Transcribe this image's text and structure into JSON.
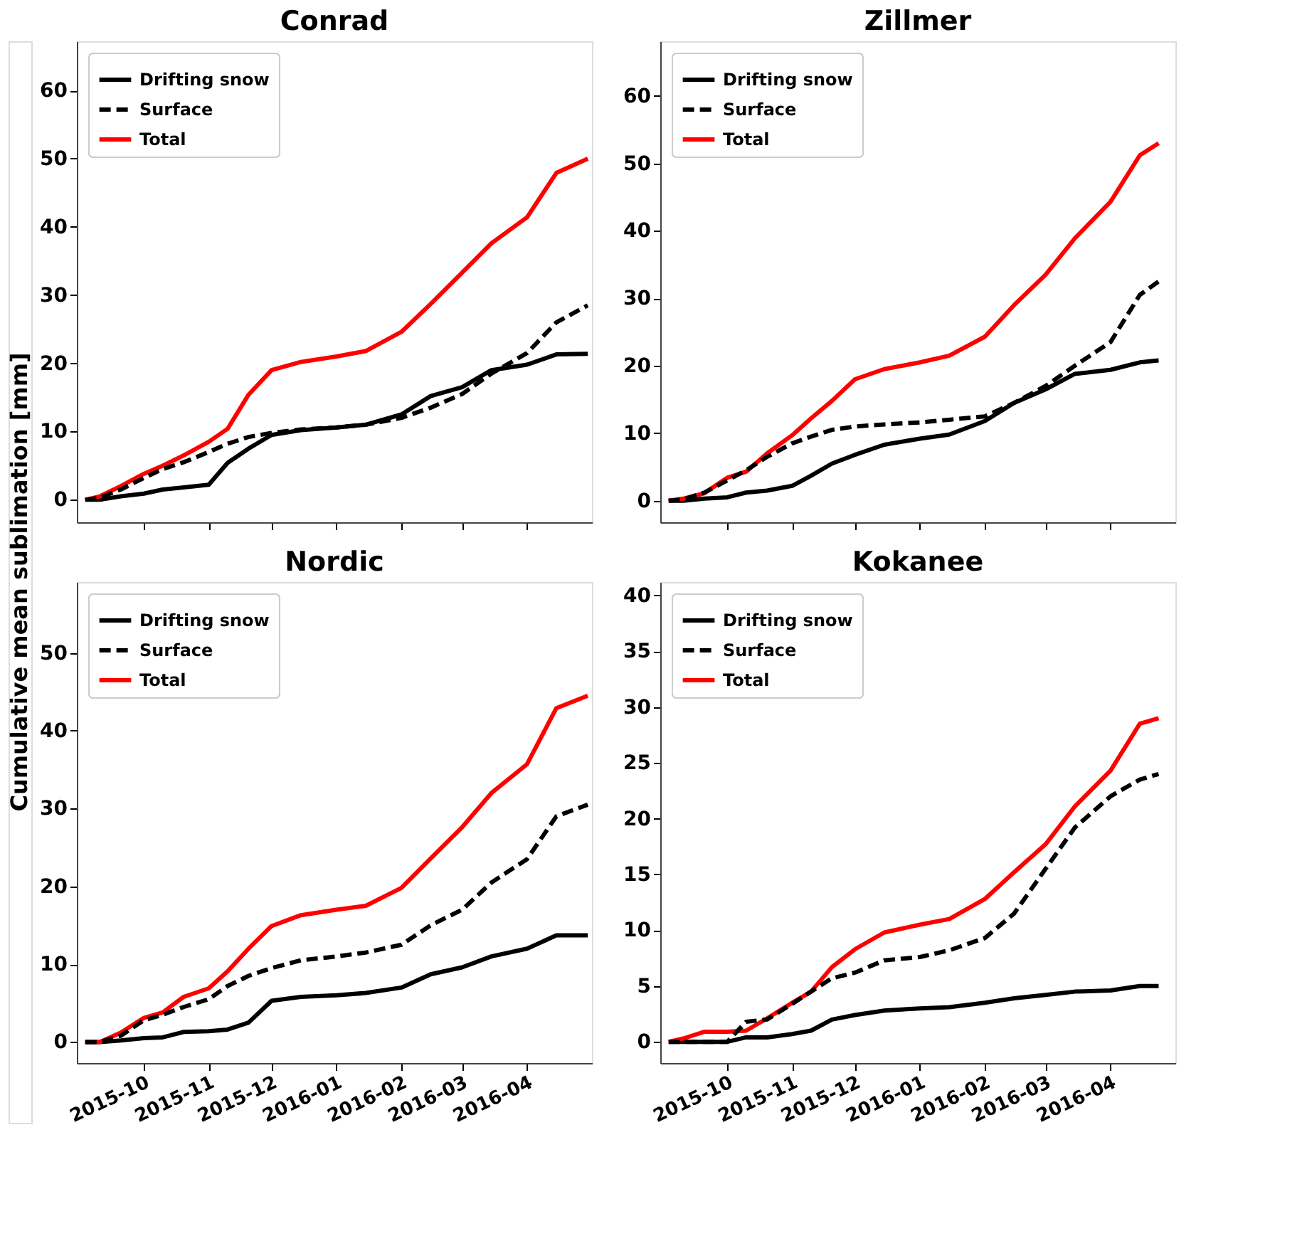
{
  "chart_data": [
    {
      "type": "line",
      "title": "Conrad",
      "xlim": [
        "2015-08-30",
        "2016-05-02"
      ],
      "ylim": [
        -3.3,
        67.2
      ],
      "yticks": [
        0,
        10,
        20,
        30,
        40,
        50,
        60
      ],
      "tick_labels": "y",
      "grid": false,
      "legend": "top left",
      "xticks": [
        {
          "value": "2015-10-01",
          "label": null
        },
        {
          "value": "2015-11-01",
          "label": null
        },
        {
          "value": "2015-12-01",
          "label": null
        },
        {
          "value": "2016-01-01",
          "label": null
        },
        {
          "value": "2016-02-01",
          "label": null
        },
        {
          "value": "2016-03-01",
          "label": null
        },
        {
          "value": "2016-04-01",
          "label": null
        }
      ],
      "x": [
        "2015-09-03",
        "2015-09-10",
        "2015-09-20",
        "2015-10-01",
        "2015-10-10",
        "2015-10-20",
        "2015-11-01",
        "2015-11-10",
        "2015-11-20",
        "2015-12-01",
        "2015-12-15",
        "2016-01-01",
        "2016-01-15",
        "2016-02-01",
        "2016-02-15",
        "2016-03-01",
        "2016-03-15",
        "2016-04-01",
        "2016-04-15",
        "2016-04-30"
      ],
      "series": [
        {
          "name": "Drifting snow",
          "color": "#000000",
          "line_style": "solid",
          "values": [
            0,
            0,
            0.5,
            0.9,
            1.5,
            1.8,
            2.2,
            5.4,
            7.5,
            9.5,
            10.2,
            10.6,
            11,
            12.5,
            15.2,
            16.5,
            19,
            19.8,
            21.3,
            21.4
          ]
        },
        {
          "name": "Surface",
          "color": "#000000",
          "line_style": "dashed",
          "values": [
            0,
            0.3,
            1.5,
            3.2,
            4.5,
            5.5,
            7,
            8.2,
            9.2,
            9.8,
            10.3,
            10.6,
            11,
            12,
            13.5,
            15.5,
            18.5,
            21.5,
            26,
            28.5
          ]
        },
        {
          "name": "Total",
          "color": "#ff0000",
          "line_style": "solid",
          "values": [
            0,
            0.5,
            2,
            3.8,
            5,
            6.5,
            8.5,
            10.4,
            15.4,
            19,
            20.2,
            21,
            21.8,
            24.6,
            28.7,
            33.3,
            37.6,
            41.4,
            47.9,
            50
          ]
        }
      ]
    },
    {
      "type": "line",
      "title": "Zillmer",
      "xlim": [
        "2015-08-30",
        "2016-05-02"
      ],
      "ylim": [
        -3.2,
        68.1
      ],
      "yticks": [
        0,
        10,
        20,
        30,
        40,
        50,
        60
      ],
      "tick_labels": "y",
      "grid": false,
      "legend": "top left",
      "xticks": [
        {
          "value": "2015-10-01",
          "label": null
        },
        {
          "value": "2015-11-01",
          "label": null
        },
        {
          "value": "2015-12-01",
          "label": null
        },
        {
          "value": "2016-01-01",
          "label": null
        },
        {
          "value": "2016-02-01",
          "label": null
        },
        {
          "value": "2016-03-01",
          "label": null
        },
        {
          "value": "2016-04-01",
          "label": null
        }
      ],
      "x": [
        "2015-09-03",
        "2015-09-10",
        "2015-09-20",
        "2015-10-01",
        "2015-10-10",
        "2015-10-20",
        "2015-11-01",
        "2015-11-10",
        "2015-11-20",
        "2015-12-01",
        "2015-12-15",
        "2016-01-01",
        "2016-01-15",
        "2016-02-01",
        "2016-02-15",
        "2016-03-01",
        "2016-03-15",
        "2016-04-01",
        "2016-04-15",
        "2016-04-24"
      ],
      "series": [
        {
          "name": "Drifting snow",
          "color": "#000000",
          "line_style": "solid",
          "values": [
            0,
            0,
            0.3,
            0.5,
            1.2,
            1.5,
            2.2,
            3.7,
            5.5,
            6.8,
            8.3,
            9.2,
            9.8,
            11.8,
            14.5,
            16.5,
            18.8,
            19.4,
            20.5,
            20.8
          ]
        },
        {
          "name": "Surface",
          "color": "#000000",
          "line_style": "dashed",
          "values": [
            0,
            0.2,
            1.2,
            3,
            4.5,
            6.5,
            8.5,
            9.5,
            10.5,
            11,
            11.3,
            11.6,
            12,
            12.5,
            14.5,
            17,
            20,
            23.5,
            30.5,
            32.5
          ]
        },
        {
          "name": "Total",
          "color": "#ff0000",
          "line_style": "solid",
          "values": [
            0,
            0.3,
            1.1,
            3.4,
            4.3,
            7,
            9.7,
            12.2,
            14.8,
            18,
            19.5,
            20.5,
            21.5,
            24.3,
            29,
            33.5,
            38.9,
            44.3,
            51.2,
            53
          ]
        }
      ]
    },
    {
      "type": "line",
      "title": "Nordic",
      "ylabel": "Cumulative mean sublimation [mm]",
      "xlim": [
        "2015-08-30",
        "2016-05-02"
      ],
      "ylim": [
        -2.7,
        59.1
      ],
      "yticks": [
        0,
        10,
        20,
        30,
        40,
        50
      ],
      "grid": false,
      "legend": "top left",
      "xticks": [
        {
          "value": "2015-10-01",
          "label": "2015-10"
        },
        {
          "value": "2015-11-01",
          "label": "2015-11"
        },
        {
          "value": "2015-12-01",
          "label": "2015-12"
        },
        {
          "value": "2016-01-01",
          "label": "2016-01"
        },
        {
          "value": "2016-02-01",
          "label": "2016-02"
        },
        {
          "value": "2016-03-01",
          "label": "2016-03"
        },
        {
          "value": "2016-04-01",
          "label": "2016-04"
        }
      ],
      "x": [
        "2015-09-03",
        "2015-09-10",
        "2015-09-20",
        "2015-10-01",
        "2015-10-10",
        "2015-10-20",
        "2015-11-01",
        "2015-11-10",
        "2015-11-20",
        "2015-12-01",
        "2015-12-15",
        "2016-01-01",
        "2016-01-15",
        "2016-02-01",
        "2016-02-15",
        "2016-03-01",
        "2016-03-15",
        "2016-04-01",
        "2016-04-15",
        "2016-04-30"
      ],
      "series": [
        {
          "name": "Drifting snow",
          "color": "#000000",
          "line_style": "solid",
          "values": [
            0,
            0,
            0.2,
            0.5,
            0.6,
            1.3,
            1.4,
            1.6,
            2.5,
            5.3,
            5.8,
            6,
            6.3,
            7,
            8.7,
            9.6,
            11,
            12,
            13.7,
            13.7
          ]
        },
        {
          "name": "Surface",
          "color": "#000000",
          "line_style": "dashed",
          "values": [
            0,
            0,
            0.8,
            2.8,
            3.5,
            4.5,
            5.5,
            7.2,
            8.5,
            9.5,
            10.5,
            11,
            11.5,
            12.5,
            15,
            17,
            20.5,
            23.5,
            29,
            30.5
          ]
        },
        {
          "name": "Total",
          "color": "#ff0000",
          "line_style": "solid",
          "values": [
            0,
            0,
            1.2,
            3.1,
            3.8,
            5.8,
            6.9,
            9.1,
            12,
            14.9,
            16.3,
            17,
            17.5,
            19.8,
            23.6,
            27.6,
            32,
            35.7,
            42.9,
            44.5
          ]
        }
      ]
    },
    {
      "type": "line",
      "title": "Kokanee",
      "xlim": [
        "2015-08-30",
        "2016-05-02"
      ],
      "ylim": [
        -1.9,
        41.2
      ],
      "yticks": [
        0,
        5,
        10,
        15,
        20,
        25,
        30,
        35,
        40
      ],
      "grid": false,
      "legend": "top left",
      "xticks": [
        {
          "value": "2015-10-01",
          "label": "2015-10"
        },
        {
          "value": "2015-11-01",
          "label": "2015-11"
        },
        {
          "value": "2015-12-01",
          "label": "2015-12"
        },
        {
          "value": "2016-01-01",
          "label": "2016-01"
        },
        {
          "value": "2016-02-01",
          "label": "2016-02"
        },
        {
          "value": "2016-03-01",
          "label": "2016-03"
        },
        {
          "value": "2016-04-01",
          "label": "2016-04"
        }
      ],
      "x": [
        "2015-09-03",
        "2015-09-10",
        "2015-09-20",
        "2015-10-01",
        "2015-10-10",
        "2015-10-20",
        "2015-11-01",
        "2015-11-10",
        "2015-11-20",
        "2015-12-01",
        "2015-12-15",
        "2016-01-01",
        "2016-01-15",
        "2016-02-01",
        "2016-02-15",
        "2016-03-01",
        "2016-03-15",
        "2016-04-01",
        "2016-04-15",
        "2016-04-24"
      ],
      "series": [
        {
          "name": "Drifting snow",
          "color": "#000000",
          "line_style": "solid",
          "values": [
            0,
            0,
            0,
            0,
            0.4,
            0.4,
            0.7,
            1,
            2,
            2.4,
            2.8,
            3,
            3.1,
            3.5,
            3.9,
            4.2,
            4.5,
            4.6,
            5,
            5
          ]
        },
        {
          "name": "Surface",
          "color": "#000000",
          "line_style": "dashed",
          "values": [
            0,
            0,
            0,
            0,
            1.8,
            2,
            3.4,
            4.5,
            5.7,
            6.2,
            7.3,
            7.6,
            8.2,
            9.3,
            11.5,
            15.5,
            19.2,
            22,
            23.5,
            24
          ]
        },
        {
          "name": "Total",
          "color": "#ff0000",
          "line_style": "solid",
          "values": [
            0,
            0.3,
            0.9,
            0.9,
            1,
            2.1,
            3.5,
            4.5,
            6.7,
            8.3,
            9.8,
            10.5,
            11,
            12.8,
            15.2,
            17.7,
            21.1,
            24.3,
            28.5,
            29
          ]
        }
      ]
    }
  ]
}
